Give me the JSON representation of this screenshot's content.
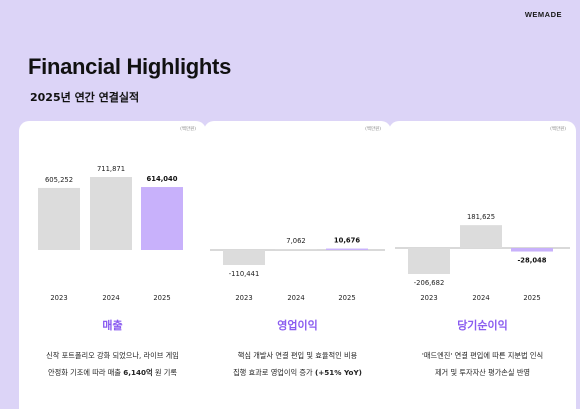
{
  "header": {
    "logo": "WEMADE",
    "title": "Financial Highlights",
    "subtitle": "2025년 연간 연결실적"
  },
  "colors": {
    "past_bar": "#dcdcdc",
    "current_bar": "#c8b1fb",
    "accent": "#8a5cf0",
    "background": "#dcd4f7"
  },
  "chart_data": [
    {
      "type": "bar",
      "title": "매출",
      "unit": "(백만원)",
      "categories": [
        "2023",
        "2024",
        "2025"
      ],
      "values": [
        605252,
        711871,
        614040
      ],
      "value_labels": [
        "605,252",
        "711,871",
        "614,040"
      ],
      "highlight_index": 2,
      "desc_line1": "신작 포트폴리오 강화 되었으나, 라이브 게임",
      "desc_line2_pre": "안정화 기조에 따라 매출 ",
      "desc_line2_bold": "6,140억",
      "desc_line2_post": " 원 기록"
    },
    {
      "type": "bar",
      "title": "영업이익",
      "unit": "(백만원)",
      "categories": [
        "2023",
        "2024",
        "2025"
      ],
      "values": [
        -110441,
        7062,
        10676
      ],
      "value_labels": [
        "-110,441",
        "7,062",
        "10,676"
      ],
      "highlight_index": 2,
      "desc_line1": "핵심 개발사 연결 편입 및 효율적인 비용",
      "desc_line2_pre": "집행 효과로 영업이익 증가 ",
      "desc_line2_bold": "(+51% YoY)",
      "desc_line2_post": ""
    },
    {
      "type": "bar",
      "title": "당기순이익",
      "unit": "(백만원)",
      "categories": [
        "2023",
        "2024",
        "2025"
      ],
      "values": [
        -206682,
        181625,
        -28048
      ],
      "value_labels": [
        "-206,682",
        "181,625",
        "-28,048"
      ],
      "highlight_index": 2,
      "desc_line1": "'매드엔진' 연결 편입에 따른 지분법 인식",
      "desc_line2_pre": "제거 및 투자자산 평가손실 반영",
      "desc_line2_bold": "",
      "desc_line2_post": ""
    }
  ]
}
